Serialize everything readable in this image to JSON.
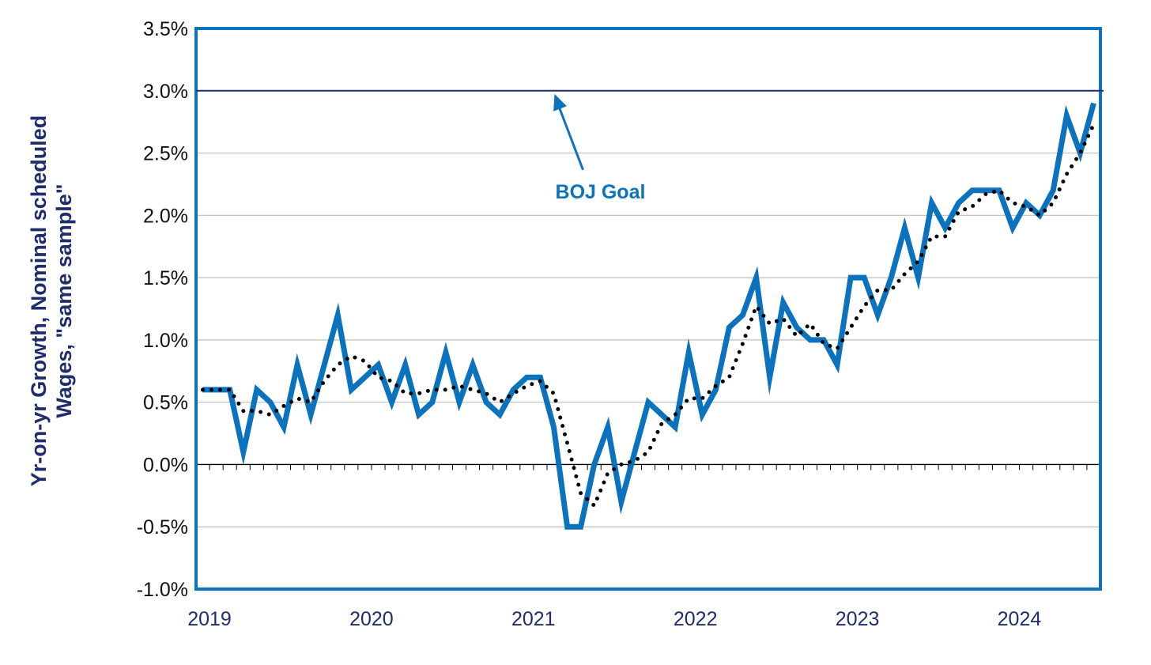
{
  "chart_data": {
    "type": "line",
    "ylabel_lines": [
      "Yr-on-yr Growth, Nominal scheduled",
      "Wages, \"same sample\""
    ],
    "ytick_labels": [
      "3.5%",
      "3.0%",
      "2.5%",
      "2.0%",
      "1.5%",
      "1.0%",
      "0.5%",
      "0.0%",
      "-0.5%",
      "-1.0%"
    ],
    "xtick_labels": [
      "2019",
      "2020",
      "2021",
      "2022",
      "2023",
      "2024"
    ],
    "xlim": [
      "2019-01",
      "2024-07"
    ],
    "ylim": [
      -1.0,
      3.5
    ],
    "grid": true,
    "legend": "none",
    "x_start": "2019-01",
    "x_frequency": "monthly",
    "series": [
      {
        "style": "solid",
        "color": "#0b72bd",
        "values": [
          0.6,
          0.6,
          0.6,
          0.1,
          0.6,
          0.5,
          0.3,
          0.8,
          0.4,
          0.8,
          1.2,
          0.6,
          0.7,
          0.8,
          0.5,
          0.8,
          0.4,
          0.5,
          0.9,
          0.5,
          0.8,
          0.5,
          0.4,
          0.6,
          0.7,
          0.7,
          0.3,
          -0.5,
          -0.5,
          0.0,
          0.3,
          -0.3,
          0.1,
          0.5,
          0.4,
          0.3,
          0.9,
          0.4,
          0.6,
          1.1,
          1.2,
          1.5,
          0.7,
          1.3,
          1.1,
          1.0,
          1.0,
          0.8,
          1.5,
          1.5,
          1.2,
          1.5,
          1.9,
          1.5,
          2.1,
          1.9,
          2.1,
          2.2,
          2.2,
          2.2,
          1.9,
          2.1,
          2.0,
          2.2,
          2.8,
          2.5,
          2.9
        ]
      },
      {
        "style": "dotted",
        "color": "#000000",
        "values": [
          0.6,
          0.6,
          0.6,
          0.43,
          0.43,
          0.4,
          0.47,
          0.53,
          0.5,
          0.67,
          0.8,
          0.87,
          0.83,
          0.7,
          0.67,
          0.57,
          0.57,
          0.6,
          0.6,
          0.63,
          0.6,
          0.57,
          0.5,
          0.57,
          0.63,
          0.67,
          0.57,
          0.17,
          -0.23,
          -0.33,
          -0.07,
          0.0,
          0.03,
          0.1,
          0.33,
          0.4,
          0.53,
          0.53,
          0.63,
          0.7,
          0.97,
          1.27,
          1.13,
          1.17,
          1.03,
          1.13,
          0.97,
          0.93,
          1.1,
          1.27,
          1.4,
          1.4,
          1.53,
          1.63,
          1.83,
          1.83,
          2.03,
          2.07,
          2.17,
          2.2,
          2.1,
          2.07,
          2.0,
          2.1,
          2.33,
          2.5,
          2.73
        ]
      },
      {
        "style": "solid-thin",
        "color": "#1f2d6b",
        "values": [
          3.0,
          3.0
        ]
      }
    ],
    "annotations": [
      {
        "text": "BOJ Goal",
        "color": "#0b72bd",
        "points_to": {
          "x": "2021-03",
          "y": 3.0
        }
      }
    ],
    "colors": {
      "frame": "#0b72bd",
      "grid": "#bfbfbf",
      "goal_line": "#1f2d6b",
      "wage_line": "#0b72bd",
      "trend_dots": "#000000"
    }
  }
}
